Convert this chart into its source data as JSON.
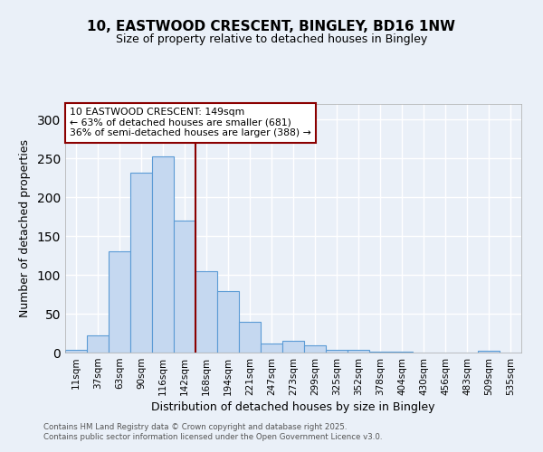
{
  "title1": "10, EASTWOOD CRESCENT, BINGLEY, BD16 1NW",
  "title2": "Size of property relative to detached houses in Bingley",
  "xlabel": "Distribution of detached houses by size in Bingley",
  "ylabel": "Number of detached properties",
  "footnote1": "Contains HM Land Registry data © Crown copyright and database right 2025.",
  "footnote2": "Contains public sector information licensed under the Open Government Licence v3.0.",
  "bar_labels": [
    "11sqm",
    "37sqm",
    "63sqm",
    "90sqm",
    "116sqm",
    "142sqm",
    "168sqm",
    "194sqm",
    "221sqm",
    "247sqm",
    "273sqm",
    "299sqm",
    "325sqm",
    "352sqm",
    "378sqm",
    "404sqm",
    "430sqm",
    "456sqm",
    "483sqm",
    "509sqm",
    "535sqm"
  ],
  "bar_values": [
    4,
    22,
    130,
    232,
    252,
    170,
    105,
    79,
    40,
    12,
    15,
    9,
    4,
    4,
    1,
    1,
    0,
    0,
    0,
    2,
    0
  ],
  "bar_color": "#c5d8f0",
  "bar_edge_color": "#5b9bd5",
  "vline_x": 5.5,
  "vline_color": "#8B0000",
  "annotation_title": "10 EASTWOOD CRESCENT: 149sqm",
  "annotation_line1": "← 63% of detached houses are smaller (681)",
  "annotation_line2": "36% of semi-detached houses are larger (388) →",
  "annotation_box_color": "#8B0000",
  "annotation_box_facecolor": "white",
  "ylim": [
    0,
    320
  ],
  "yticks": [
    0,
    50,
    100,
    150,
    200,
    250,
    300
  ],
  "background_color": "#eaf0f8",
  "grid_color": "white"
}
